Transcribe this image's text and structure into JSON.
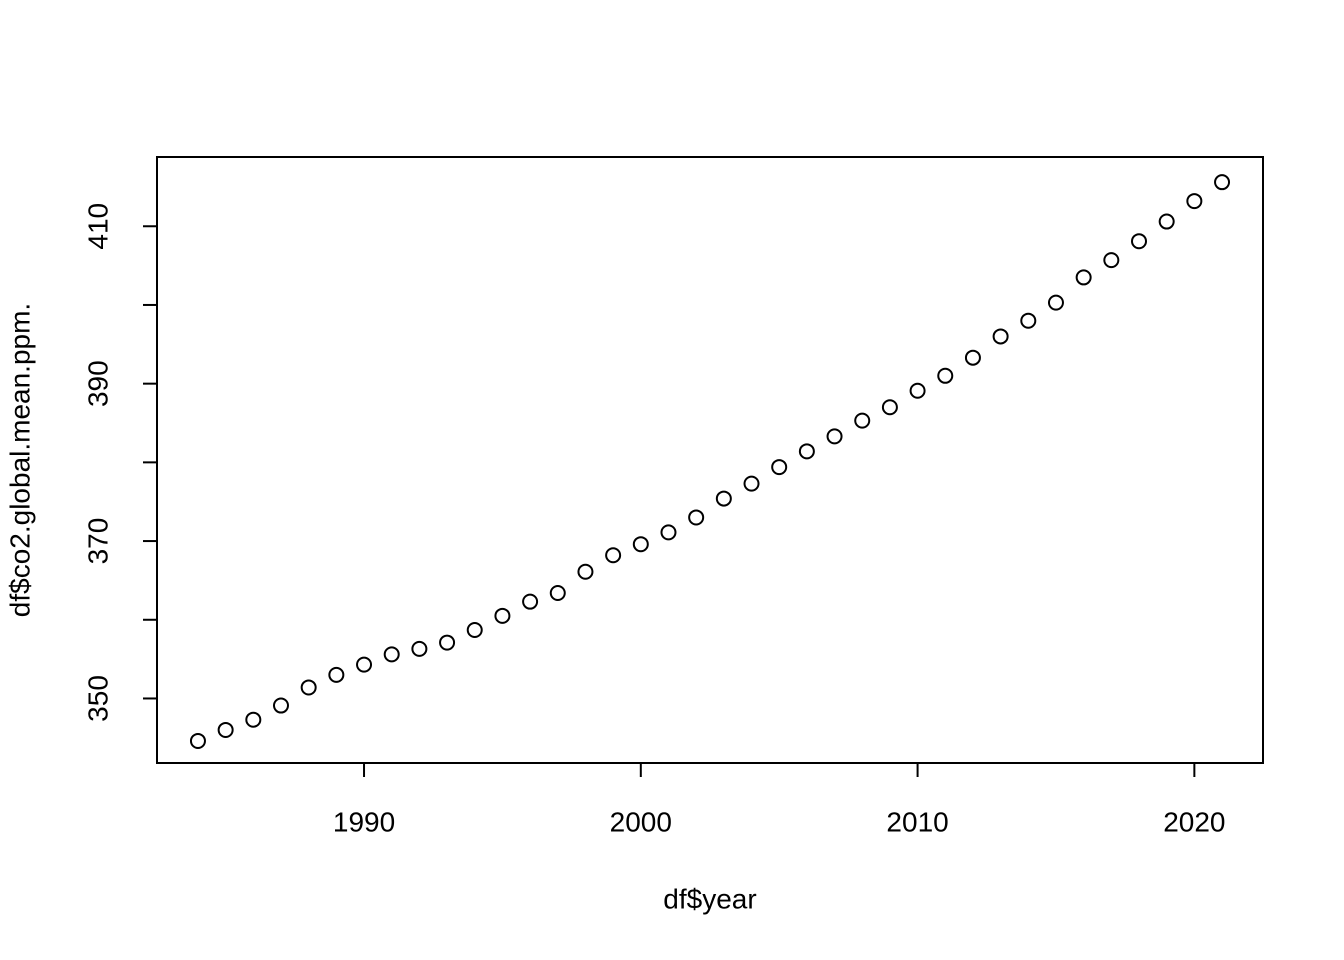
{
  "chart_data": {
    "type": "scatter",
    "x_label": "df$year",
    "y_label": "df$co2.global.mean.ppm.",
    "x": [
      1984,
      1985,
      1986,
      1987,
      1988,
      1989,
      1990,
      1991,
      1992,
      1993,
      1994,
      1995,
      1996,
      1997,
      1998,
      1999,
      2000,
      2001,
      2002,
      2003,
      2004,
      2005,
      2006,
      2007,
      2008,
      2009,
      2010,
      2011,
      2012,
      2013,
      2014,
      2015,
      2016,
      2017,
      2018,
      2019,
      2020,
      2021
    ],
    "values": [
      344.6,
      346.0,
      347.3,
      349.1,
      351.4,
      353.0,
      354.3,
      355.6,
      356.3,
      357.1,
      358.7,
      360.5,
      362.3,
      363.4,
      366.1,
      368.2,
      369.6,
      371.1,
      373.0,
      375.4,
      377.3,
      379.4,
      381.4,
      383.3,
      385.3,
      387.0,
      389.1,
      391.0,
      393.3,
      396.0,
      398.0,
      400.3,
      403.5,
      405.7,
      408.1,
      410.6,
      413.2,
      415.6
    ],
    "xlim": [
      1982.52,
      2022.48
    ],
    "ylim": [
      341.8,
      418.8
    ],
    "xticks": [
      1990,
      2000,
      2010,
      2020
    ],
    "yticks": [
      350,
      370,
      390,
      410
    ],
    "yminor_ticks": [
      360,
      380,
      400
    ],
    "color": "#000000",
    "grid": false
  }
}
